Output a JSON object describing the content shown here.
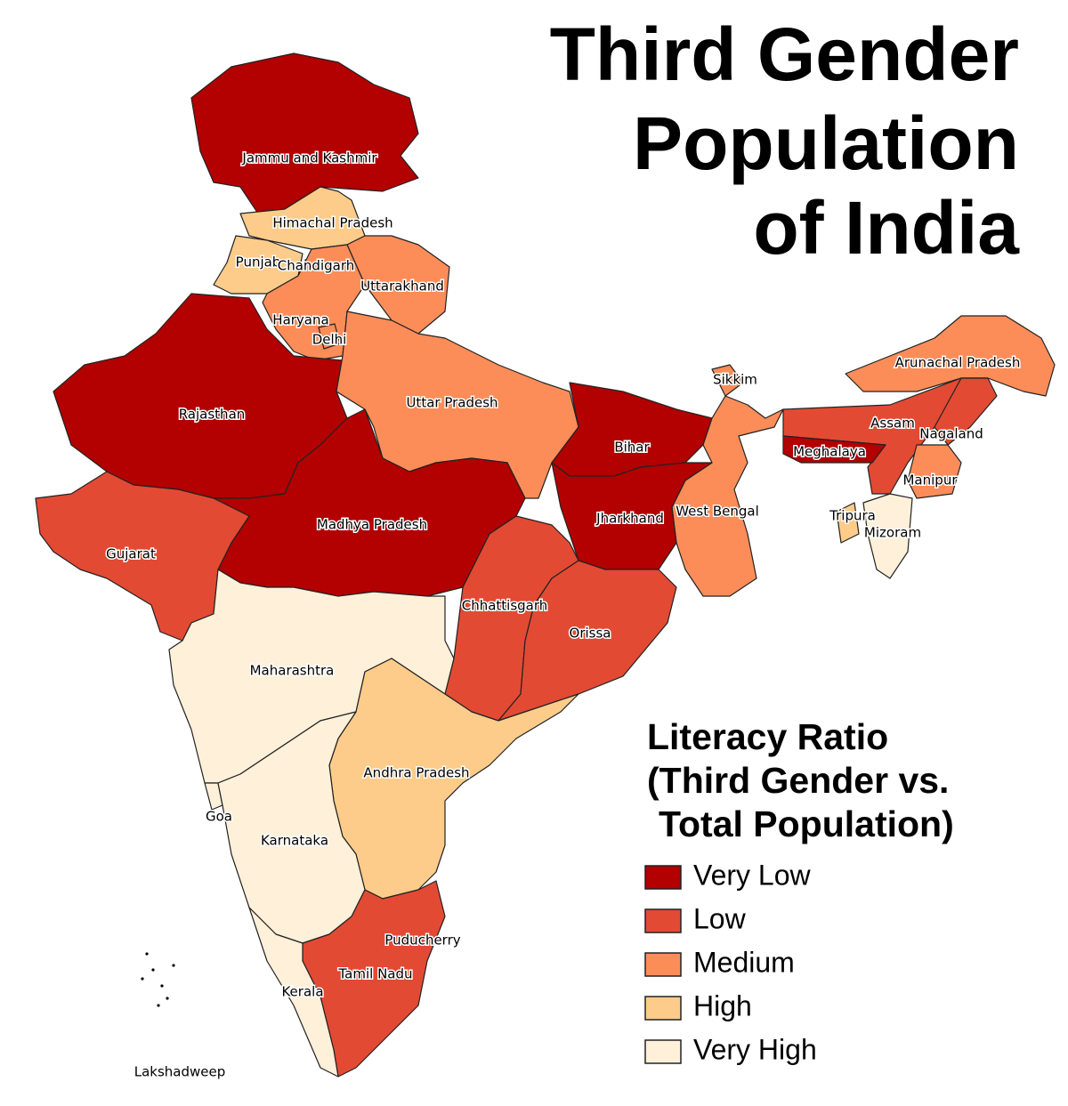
{
  "title": [
    "Third Gender",
    "Population",
    "of India"
  ],
  "legend": {
    "title": [
      "Literacy Ratio",
      "(Third Gender vs.",
      "Total Population)"
    ],
    "items": [
      {
        "label": "Very Low",
        "color": "#b30000"
      },
      {
        "label": "Low",
        "color": "#e34a33"
      },
      {
        "label": "Medium",
        "color": "#fc8d59"
      },
      {
        "label": "High",
        "color": "#fdcc8a"
      },
      {
        "label": "Very High",
        "color": "#fef0d9"
      }
    ]
  },
  "regions": [
    {
      "name": "Jammu and Kashmir",
      "category": "Very Low"
    },
    {
      "name": "Himachal Pradesh",
      "category": "High"
    },
    {
      "name": "Punjab",
      "category": "High"
    },
    {
      "name": "Chandigarh",
      "category": "High"
    },
    {
      "name": "Uttarakhand",
      "category": "Medium"
    },
    {
      "name": "Haryana",
      "category": "Medium"
    },
    {
      "name": "Delhi",
      "category": "Medium"
    },
    {
      "name": "Rajasthan",
      "category": "Very Low"
    },
    {
      "name": "Uttar Pradesh",
      "category": "Medium"
    },
    {
      "name": "Bihar",
      "category": "Very Low"
    },
    {
      "name": "Sikkim",
      "category": "Medium"
    },
    {
      "name": "Arunachal Pradesh",
      "category": "Medium"
    },
    {
      "name": "Assam",
      "category": "Low"
    },
    {
      "name": "Nagaland",
      "category": "Low"
    },
    {
      "name": "Meghalaya",
      "category": "Very Low"
    },
    {
      "name": "Manipur",
      "category": "Medium"
    },
    {
      "name": "Tripura",
      "category": "High"
    },
    {
      "name": "Mizoram",
      "category": "Very High"
    },
    {
      "name": "West Bengal",
      "category": "Medium"
    },
    {
      "name": "Jharkhand",
      "category": "Very Low"
    },
    {
      "name": "Madhya Pradesh",
      "category": "Very Low"
    },
    {
      "name": "Gujarat",
      "category": "Low"
    },
    {
      "name": "Chhattisgarh",
      "category": "Low"
    },
    {
      "name": "Orissa",
      "category": "Low"
    },
    {
      "name": "Maharashtra",
      "category": "Very High"
    },
    {
      "name": "Andhra Pradesh",
      "category": "High"
    },
    {
      "name": "Goa",
      "category": "Very High"
    },
    {
      "name": "Karnataka",
      "category": "Very High"
    },
    {
      "name": "Puducherry",
      "category": "Low"
    },
    {
      "name": "Tamil Nadu",
      "category": "Low"
    },
    {
      "name": "Kerala",
      "category": "Very High"
    },
    {
      "name": "Lakshadweep",
      "category": null
    }
  ]
}
